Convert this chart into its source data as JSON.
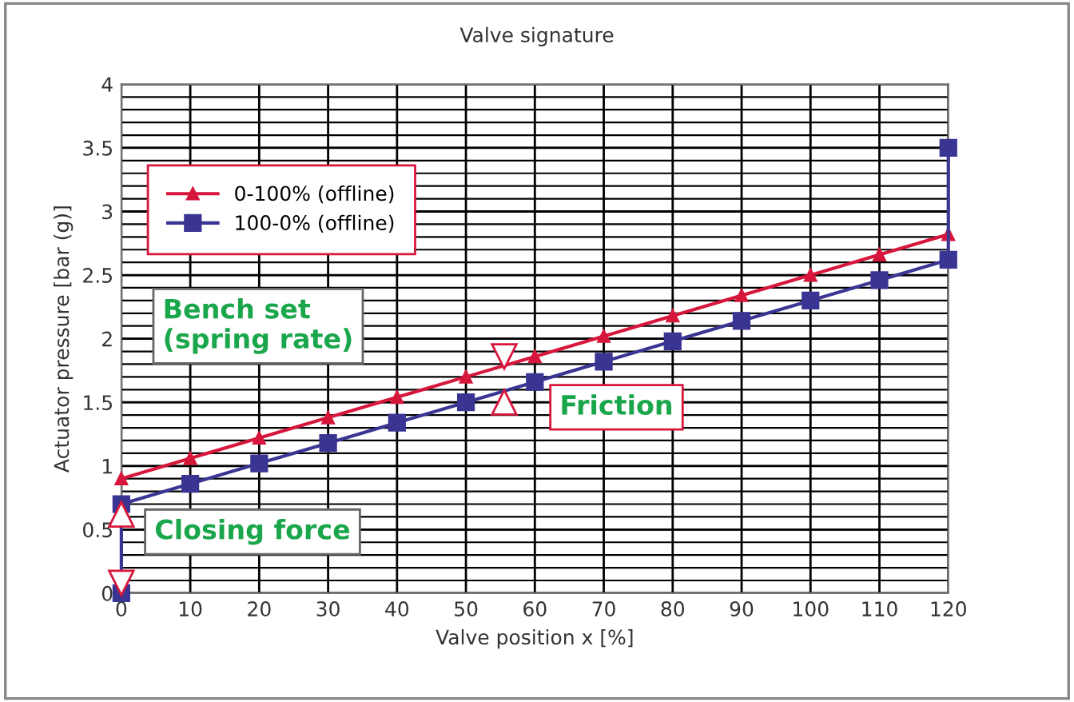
{
  "chart_data": {
    "type": "line",
    "title": "Valve signature",
    "xlabel": "Valve position x [%]",
    "ylabel": "Actuator pressure [bar (g)]",
    "xlim": [
      0,
      120
    ],
    "xticks": [
      0,
      10,
      20,
      30,
      40,
      50,
      60,
      70,
      80,
      90,
      100,
      110,
      120
    ],
    "ylim": [
      0,
      4
    ],
    "yticks": [
      0,
      0.5,
      1,
      1.5,
      2,
      2.5,
      3,
      3.5,
      4
    ],
    "grid": true,
    "legend": "top left",
    "series": [
      {
        "name": "0-100% (offline)",
        "color": "#d7163c",
        "marker": "triangle",
        "x": [
          0,
          10,
          20,
          30,
          40,
          50,
          60,
          70,
          80,
          90,
          100,
          110,
          120
        ],
        "values": [
          0.9,
          1.06,
          1.22,
          1.38,
          1.54,
          1.7,
          1.86,
          2.02,
          2.18,
          2.34,
          2.5,
          2.66,
          2.82
        ]
      },
      {
        "name": "100-0% (offline)",
        "color": "#3a3492",
        "marker": "square",
        "x": [
          0,
          0,
          10,
          20,
          30,
          40,
          50,
          60,
          70,
          80,
          90,
          100,
          110,
          120,
          120
        ],
        "values": [
          0,
          0.7,
          0.86,
          1.02,
          1.18,
          1.34,
          1.5,
          1.66,
          1.82,
          1.98,
          2.14,
          2.3,
          2.46,
          2.62,
          3.5
        ]
      }
    ],
    "annotations": [
      "Bench set\n(spring rate)",
      "Closing force",
      "Friction"
    ]
  }
}
